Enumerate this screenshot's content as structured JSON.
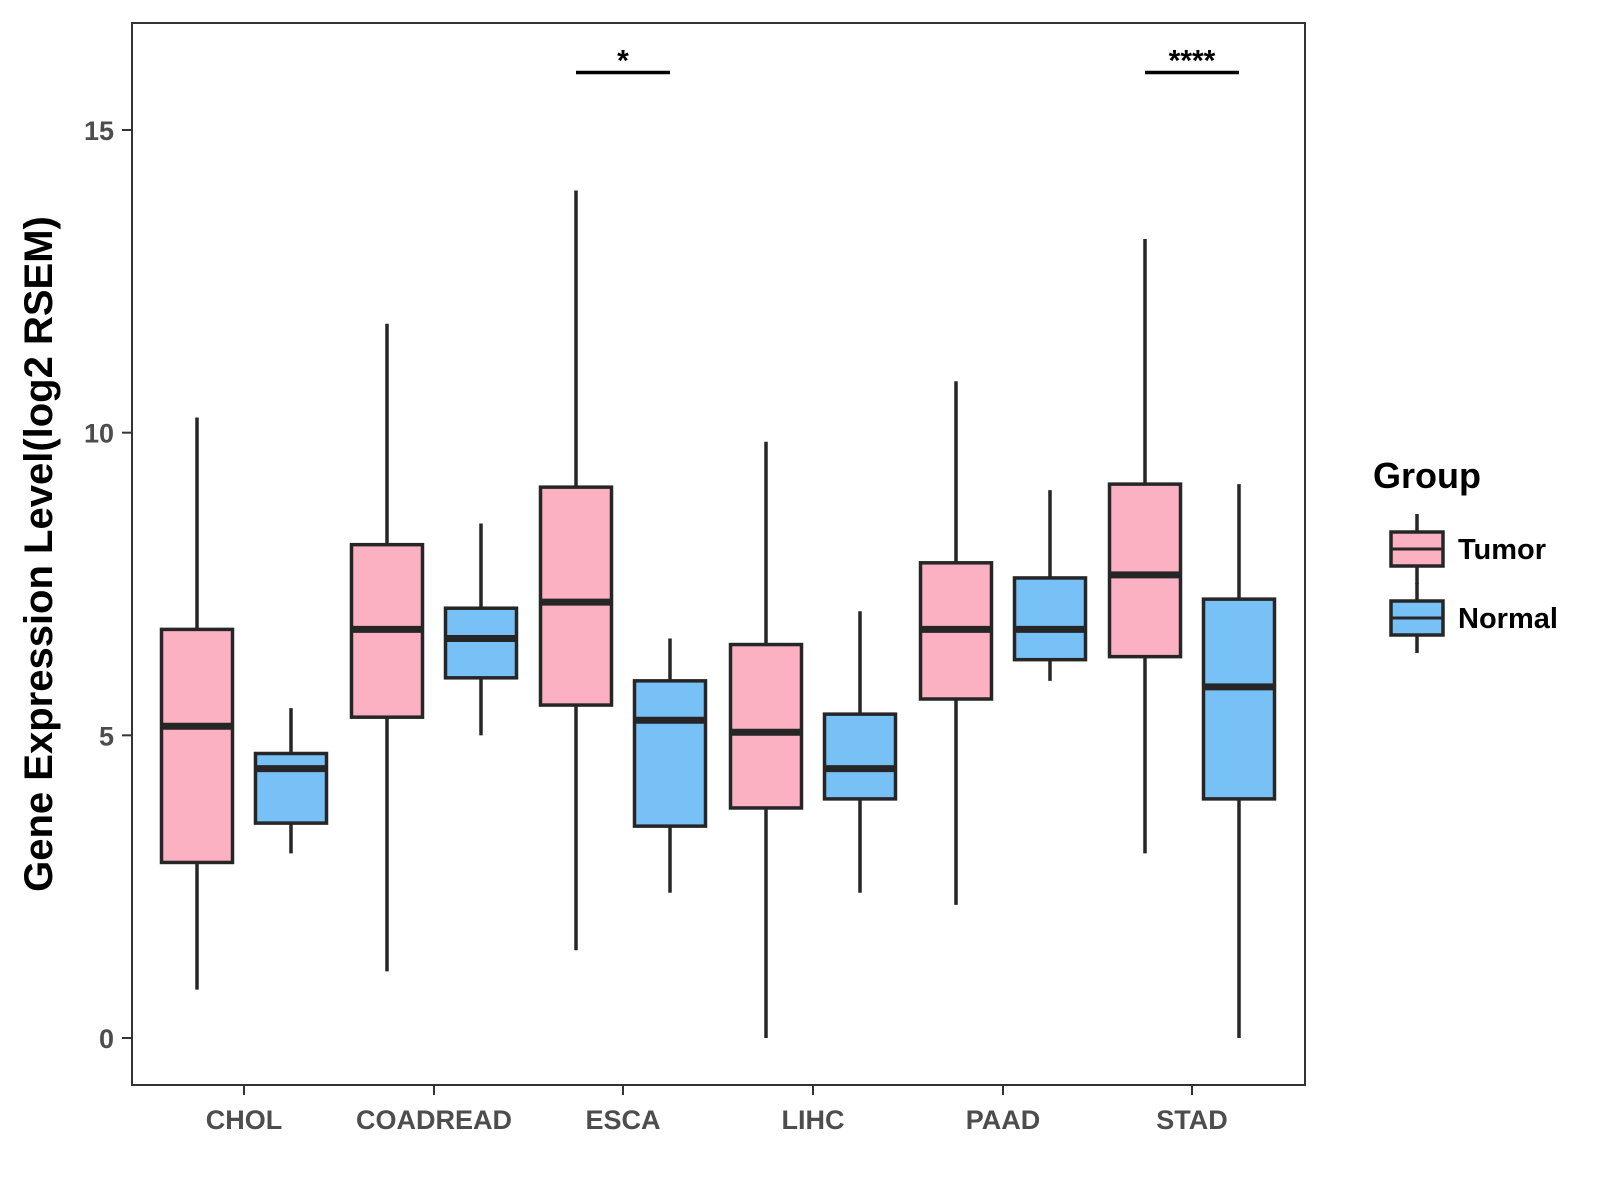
{
  "chart_data": {
    "type": "box",
    "title": "",
    "xlabel": "",
    "ylabel": "Gene Expression Level(log2 RSEM)",
    "ylim": [
      -0.75,
      16.8
    ],
    "yticks": [
      0,
      5,
      10,
      15
    ],
    "categories": [
      "CHOL",
      "COADREAD",
      "ESCA",
      "LIHC",
      "PAAD",
      "STAD"
    ],
    "legend": {
      "title": "Group",
      "position": "right",
      "items": [
        {
          "label": "Tumor",
          "color": "#FBB1C1"
        },
        {
          "label": "Normal",
          "color": "#78C1F7"
        }
      ]
    },
    "series": [
      {
        "name": "Tumor",
        "color": "#FBB1C1",
        "boxes": [
          {
            "category": "CHOL",
            "min": 0.8,
            "q1": 2.9,
            "median": 5.15,
            "q3": 6.75,
            "max": 10.25
          },
          {
            "category": "COADREAD",
            "min": 1.1,
            "q1": 5.3,
            "median": 6.75,
            "q3": 8.15,
            "max": 11.8
          },
          {
            "category": "ESCA",
            "min": 1.45,
            "q1": 5.5,
            "median": 7.2,
            "q3": 9.1,
            "max": 14.0
          },
          {
            "category": "LIHC",
            "min": 0.0,
            "q1": 3.8,
            "median": 5.05,
            "q3": 6.5,
            "max": 9.85
          },
          {
            "category": "PAAD",
            "min": 2.2,
            "q1": 5.6,
            "median": 6.75,
            "q3": 7.85,
            "max": 10.85
          },
          {
            "category": "STAD",
            "min": 3.05,
            "q1": 6.3,
            "median": 7.65,
            "q3": 9.15,
            "max": 13.2
          }
        ]
      },
      {
        "name": "Normal",
        "color": "#78C1F7",
        "boxes": [
          {
            "category": "CHOL",
            "min": 3.05,
            "q1": 3.55,
            "median": 4.45,
            "q3": 4.7,
            "max": 5.45
          },
          {
            "category": "COADREAD",
            "min": 5.0,
            "q1": 5.95,
            "median": 6.6,
            "q3": 7.1,
            "max": 8.5
          },
          {
            "category": "ESCA",
            "min": 2.4,
            "q1": 3.5,
            "median": 5.25,
            "q3": 5.9,
            "max": 6.6
          },
          {
            "category": "LIHC",
            "min": 2.4,
            "q1": 3.95,
            "median": 4.45,
            "q3": 5.35,
            "max": 7.05
          },
          {
            "category": "PAAD",
            "min": 5.9,
            "q1": 6.25,
            "median": 6.75,
            "q3": 7.6,
            "max": 9.05
          },
          {
            "category": "STAD",
            "min": 0.0,
            "q1": 3.95,
            "median": 5.8,
            "q3": 7.25,
            "max": 9.15
          }
        ]
      }
    ],
    "annotations": [
      {
        "category": "ESCA",
        "label": "*",
        "y": 15.95
      },
      {
        "category": "STAD",
        "label": "****",
        "y": 15.95
      }
    ]
  }
}
